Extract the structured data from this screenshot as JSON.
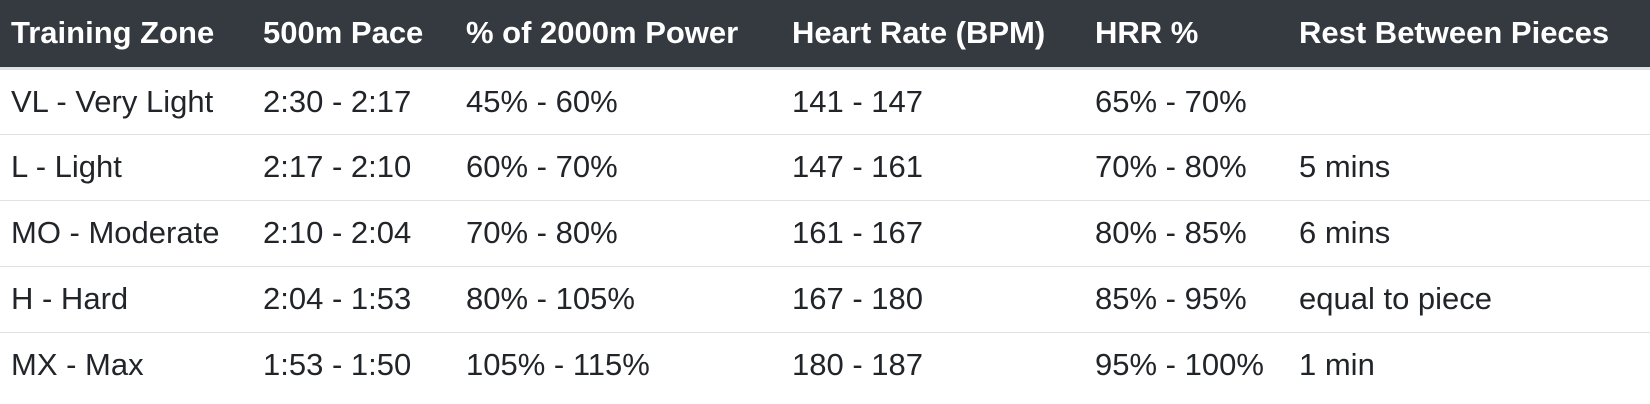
{
  "table": {
    "headers": [
      "Training Zone",
      "500m Pace",
      "% of 2000m Power",
      "Heart Rate (BPM)",
      "HRR %",
      "Rest Between Pieces"
    ],
    "rows": [
      [
        "VL - Very Light",
        "2:30 - 2:17",
        "45% - 60%",
        "141 - 147",
        "65% - 70%",
        ""
      ],
      [
        "L - Light",
        "2:17 - 2:10",
        "60% - 70%",
        "147 - 161",
        "70% - 80%",
        "5 mins"
      ],
      [
        "MO - Moderate",
        "2:10 - 2:04",
        "70% - 80%",
        "161 - 167",
        "80% - 85%",
        "6 mins"
      ],
      [
        "H - Hard",
        "2:04 - 1:53",
        "80% - 105%",
        "167 - 180",
        "85% - 95%",
        "equal to piece"
      ],
      [
        "MX - Max",
        "1:53 - 1:50",
        "105% - 115%",
        "180 - 187",
        "95% - 100%",
        "1 min"
      ]
    ]
  },
  "colors": {
    "header_bg": "#343a40",
    "header_text": "#ffffff",
    "row_border": "#dee2e6",
    "body_text": "#212529"
  }
}
